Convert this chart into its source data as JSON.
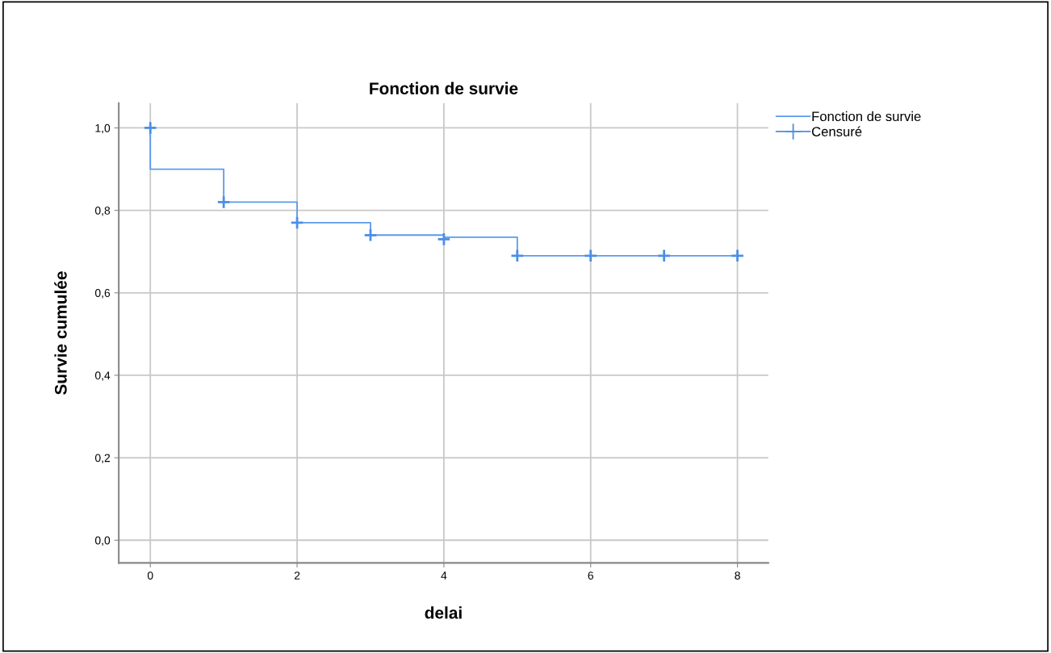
{
  "chart_data": {
    "type": "step",
    "title": "Fonction de survie",
    "xlabel": "delai",
    "ylabel": "Survie cumulée",
    "series": [
      {
        "name": "Fonction de survie",
        "color": "#5b9bec",
        "x": [
          0,
          0,
          1,
          2,
          3,
          4,
          5,
          8
        ],
        "values": [
          1.0,
          0.9,
          0.82,
          0.77,
          0.74,
          0.735,
          0.69,
          0.69
        ]
      },
      {
        "name": "Censuré",
        "type": "scatter",
        "marker": "cross",
        "color": "#4a8fe6",
        "x": [
          0,
          1,
          2,
          3,
          4,
          5,
          6,
          7,
          8
        ],
        "values": [
          1.0,
          0.82,
          0.77,
          0.74,
          0.73,
          0.69,
          0.69,
          0.69,
          0.69
        ]
      }
    ],
    "xlim": [
      -0.43,
      8.42
    ],
    "xticks": [
      0,
      2,
      4,
      6,
      8
    ],
    "ylim": [
      -0.055,
      1.06
    ],
    "yticks": [
      {
        "value": 0,
        "label": "0,0"
      },
      {
        "value": 0.2,
        "label": "0,2"
      },
      {
        "value": 0.4,
        "label": "0,4"
      },
      {
        "value": 0.6,
        "label": "0,6"
      },
      {
        "value": 0.8,
        "label": "0,8"
      },
      {
        "value": 1.0,
        "label": "1,0"
      }
    ],
    "grid": true,
    "legend": "top right"
  }
}
